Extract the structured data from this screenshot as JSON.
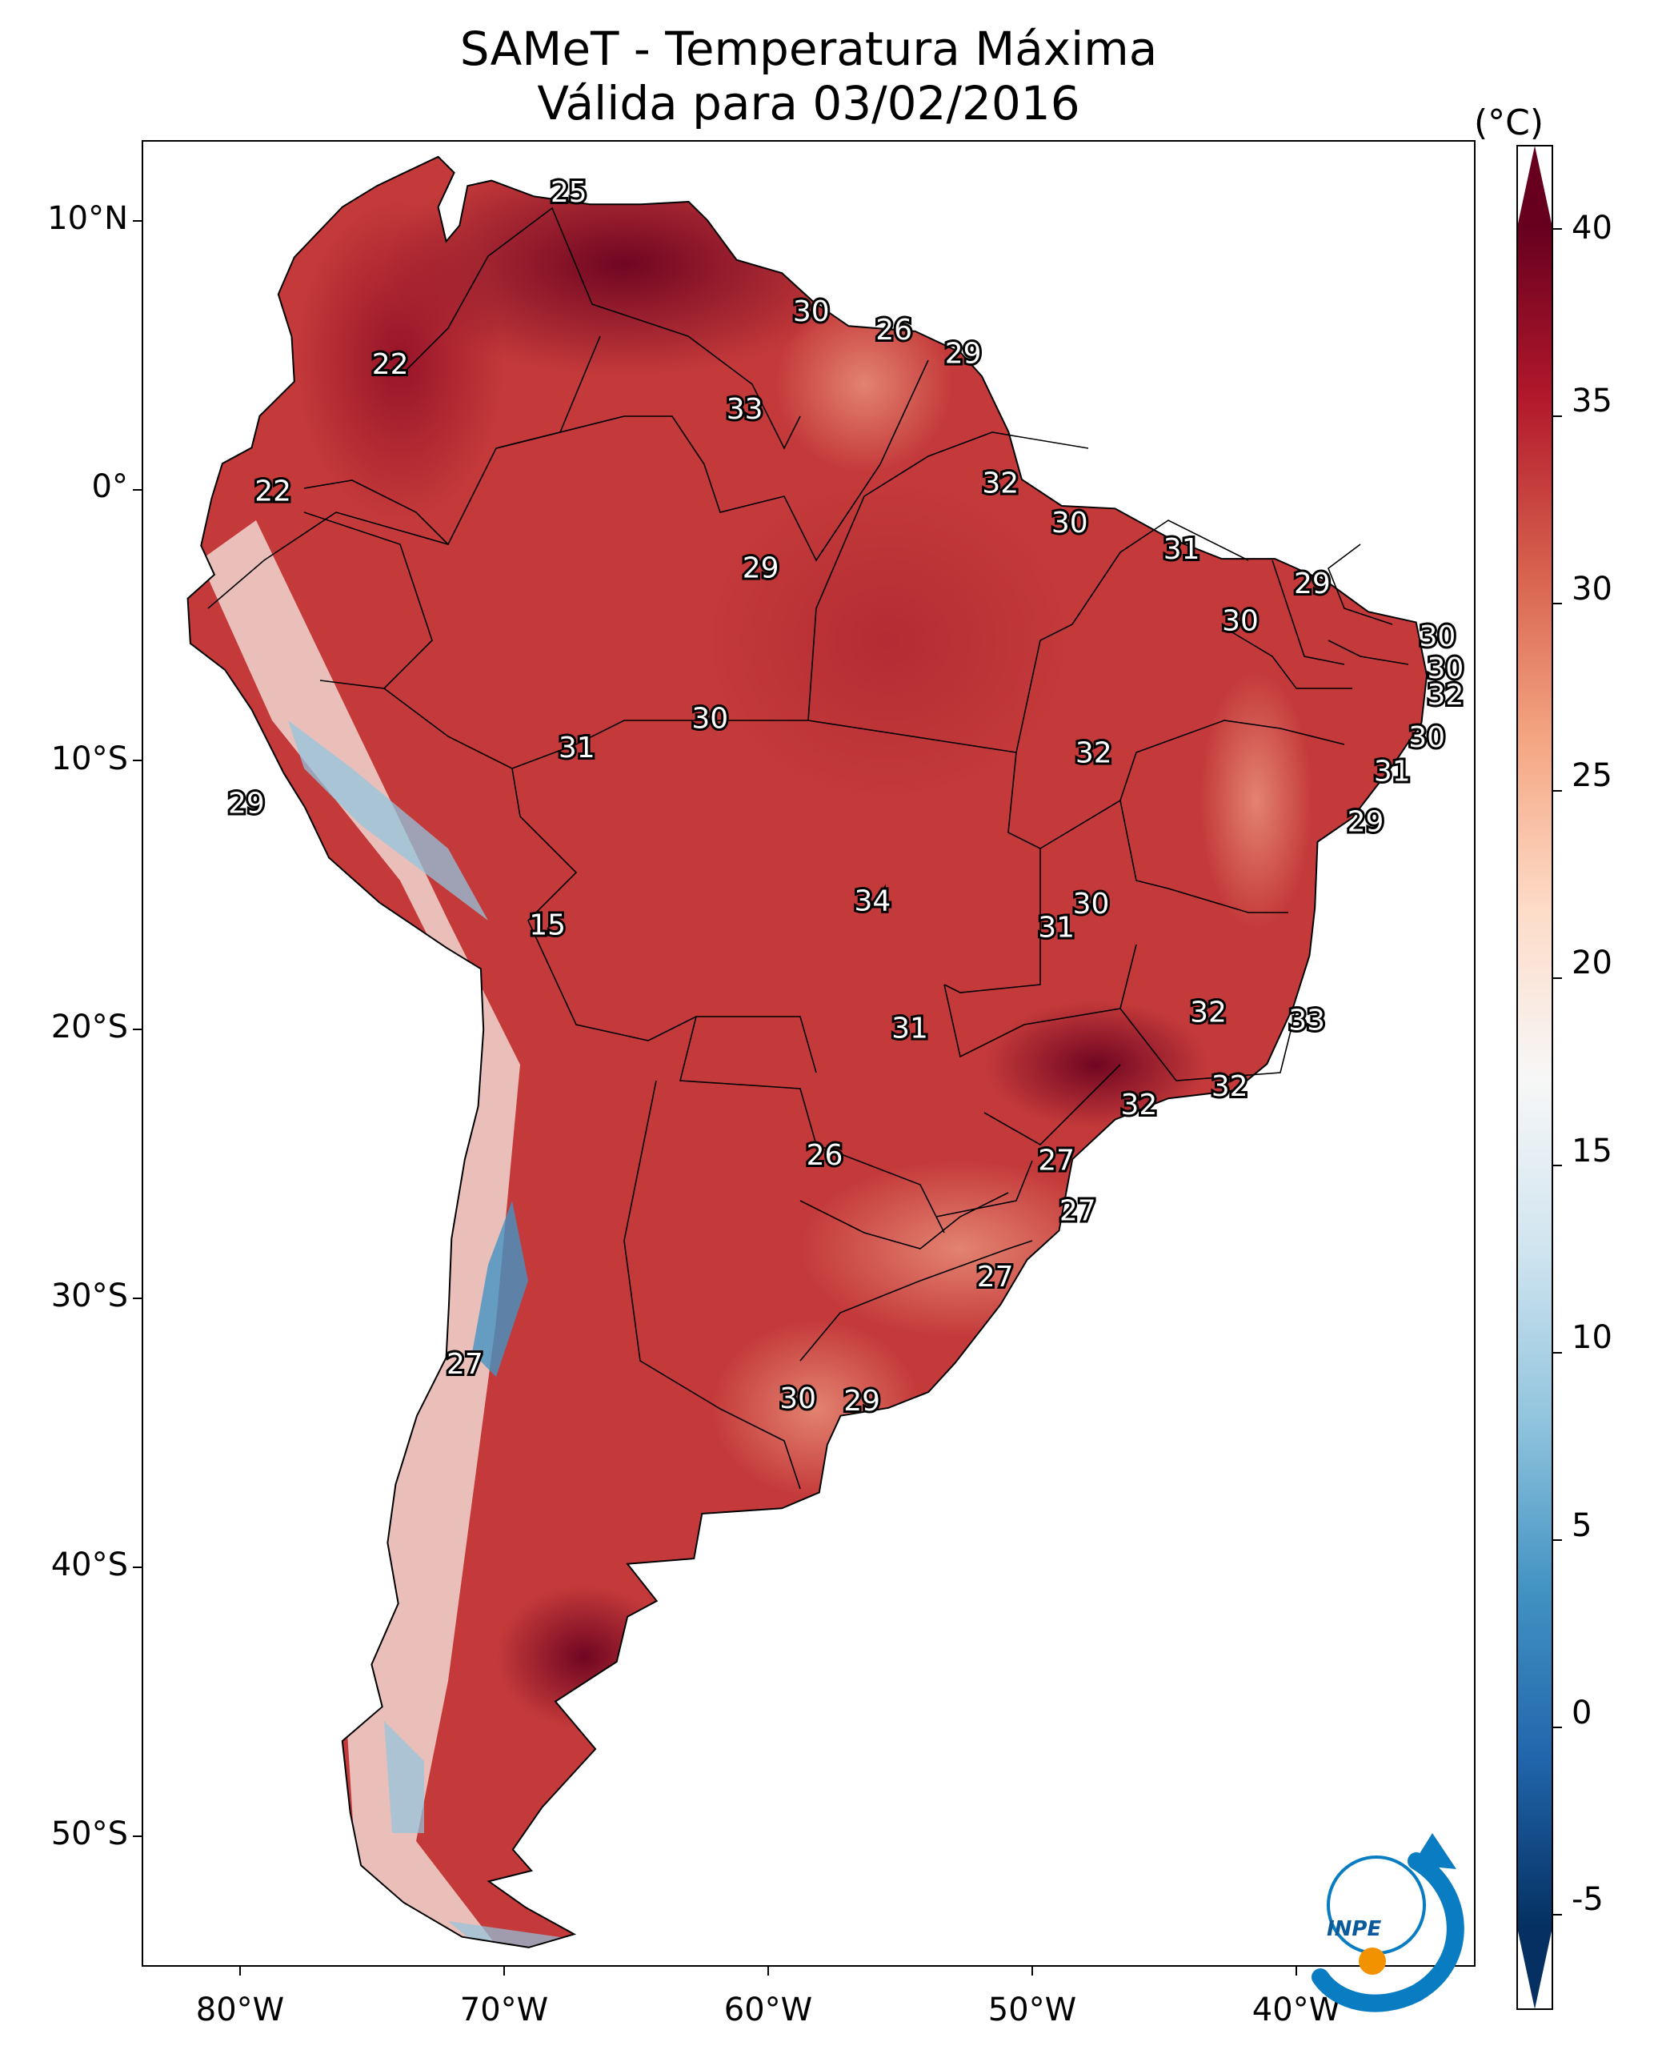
{
  "title": {
    "line1": "SAMeT - Temperatura Máxima",
    "line2": "Válida para 03/02/2016"
  },
  "colorbar": {
    "unit": "(°C)",
    "ticks": [
      "40",
      "35",
      "30",
      "25",
      "20",
      "15",
      "10",
      "5",
      "0",
      "-5"
    ],
    "colors": [
      "#67001f",
      "#b2182b",
      "#d6604d",
      "#f4a582",
      "#fddbc7",
      "#f7f7f7",
      "#d1e5f0",
      "#92c5de",
      "#4393c3",
      "#2166ac",
      "#053061"
    ]
  },
  "axes": {
    "lat_ticks": [
      "10°N",
      "0°",
      "10°S",
      "20°S",
      "30°S",
      "40°S",
      "50°S"
    ],
    "lon_ticks": [
      "80°W",
      "70°W",
      "60°W",
      "50°W",
      "40°W"
    ]
  },
  "map_labels": [
    {
      "text": "25",
      "lon": -67.0,
      "lat": 11.0
    },
    {
      "text": "30",
      "lon": -57.9,
      "lat": 6.5
    },
    {
      "text": "26",
      "lon": -54.8,
      "lat": 5.8
    },
    {
      "text": "29",
      "lon": -52.2,
      "lat": 4.9
    },
    {
      "text": "22",
      "lon": -73.7,
      "lat": 4.5
    },
    {
      "text": "33",
      "lon": -60.4,
      "lat": 2.8
    },
    {
      "text": "22",
      "lon": -78.1,
      "lat": -0.3
    },
    {
      "text": "32",
      "lon": -50.8,
      "lat": 0.0
    },
    {
      "text": "30",
      "lon": -48.2,
      "lat": -1.5
    },
    {
      "text": "31",
      "lon": -44.0,
      "lat": -2.5
    },
    {
      "text": "29",
      "lon": -59.8,
      "lat": -3.2
    },
    {
      "text": "29",
      "lon": -39.1,
      "lat": -3.8
    },
    {
      "text": "30",
      "lon": -41.8,
      "lat": -5.2
    },
    {
      "text": "30",
      "lon": -34.4,
      "lat": -5.8
    },
    {
      "text": "30",
      "lon": -34.1,
      "lat": -7.0
    },
    {
      "text": "32",
      "lon": -34.1,
      "lat": -8.0
    },
    {
      "text": "30",
      "lon": -61.7,
      "lat": -8.9
    },
    {
      "text": "30",
      "lon": -34.8,
      "lat": -9.6
    },
    {
      "text": "32",
      "lon": -47.3,
      "lat": -10.2
    },
    {
      "text": "31",
      "lon": -66.7,
      "lat": -10.0
    },
    {
      "text": "31",
      "lon": -36.1,
      "lat": -10.9
    },
    {
      "text": "29",
      "lon": -79.1,
      "lat": -12.1
    },
    {
      "text": "29",
      "lon": -37.1,
      "lat": -12.8
    },
    {
      "text": "34",
      "lon": -55.6,
      "lat": -15.8
    },
    {
      "text": "30",
      "lon": -47.4,
      "lat": -15.9
    },
    {
      "text": "31",
      "lon": -48.7,
      "lat": -16.8
    },
    {
      "text": "15",
      "lon": -67.8,
      "lat": -16.7
    },
    {
      "text": "32",
      "lon": -43.0,
      "lat": -20.0
    },
    {
      "text": "33",
      "lon": -39.3,
      "lat": -20.3
    },
    {
      "text": "31",
      "lon": -54.2,
      "lat": -20.6
    },
    {
      "text": "32",
      "lon": -42.2,
      "lat": -22.8
    },
    {
      "text": "32",
      "lon": -45.6,
      "lat": -23.5
    },
    {
      "text": "26",
      "lon": -57.4,
      "lat": -25.4
    },
    {
      "text": "27",
      "lon": -48.7,
      "lat": -25.6
    },
    {
      "text": "27",
      "lon": -47.9,
      "lat": -27.5
    },
    {
      "text": "27",
      "lon": -51.0,
      "lat": -30.0
    },
    {
      "text": "27",
      "lon": -70.9,
      "lat": -33.3
    },
    {
      "text": "30",
      "lon": -58.4,
      "lat": -34.6
    },
    {
      "text": "29",
      "lon": -56.0,
      "lat": -34.7
    }
  ],
  "logo": {
    "text": "INPE"
  }
}
